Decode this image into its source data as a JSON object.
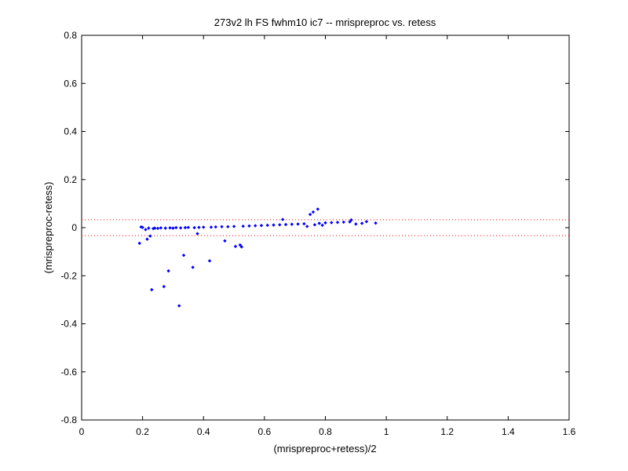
{
  "chart_data": {
    "type": "scatter",
    "title": "273v2 lh FS fwhm10 ic7 -- mrispreproc vs. retess",
    "xlabel": "(mrispreproc+retess)/2",
    "ylabel": "(mrispreproc-retess)",
    "xlim": [
      0,
      1.6
    ],
    "ylim": [
      -0.8,
      0.8
    ],
    "x_ticks": [
      "0",
      "0.2",
      "0.4",
      "0.6",
      "0.8",
      "1",
      "1.2",
      "1.4",
      "1.6"
    ],
    "y_ticks": [
      "0.8",
      "0.6",
      "0.4",
      "0.2",
      "0",
      "-0.2",
      "-0.4",
      "-0.6",
      "-0.8"
    ],
    "grid": false,
    "marker_color": "#0000ff",
    "reference_lines": {
      "color": "#ff0000",
      "style": "dotted",
      "y_values": [
        0.033,
        -0.033
      ]
    },
    "series": [
      {
        "points": [
          [
            0.19,
            -0.065
          ],
          [
            0.195,
            0.003
          ],
          [
            0.2,
            0.001
          ],
          [
            0.21,
            -0.008
          ],
          [
            0.215,
            -0.048
          ],
          [
            0.22,
            -0.002
          ],
          [
            0.225,
            -0.035
          ],
          [
            0.23,
            -0.258
          ],
          [
            0.235,
            -0.004
          ],
          [
            0.24,
            -0.002
          ],
          [
            0.25,
            -0.003
          ],
          [
            0.26,
            -0.001
          ],
          [
            0.27,
            -0.245
          ],
          [
            0.275,
            -0.002
          ],
          [
            0.285,
            -0.18
          ],
          [
            0.29,
            -0.001
          ],
          [
            0.3,
            -0.002
          ],
          [
            0.31,
            0.0
          ],
          [
            0.32,
            -0.325
          ],
          [
            0.325,
            -0.001
          ],
          [
            0.335,
            -0.115
          ],
          [
            0.34,
            0.0
          ],
          [
            0.35,
            0.001
          ],
          [
            0.365,
            -0.165
          ],
          [
            0.37,
            0.0
          ],
          [
            0.38,
            -0.025
          ],
          [
            0.385,
            0.001
          ],
          [
            0.4,
            0.002
          ],
          [
            0.42,
            -0.138
          ],
          [
            0.425,
            0.002
          ],
          [
            0.44,
            0.003
          ],
          [
            0.46,
            0.004
          ],
          [
            0.47,
            -0.055
          ],
          [
            0.48,
            0.004
          ],
          [
            0.5,
            0.005
          ],
          [
            0.505,
            -0.078
          ],
          [
            0.52,
            -0.072
          ],
          [
            0.525,
            -0.08
          ],
          [
            0.53,
            0.006
          ],
          [
            0.55,
            0.007
          ],
          [
            0.57,
            0.008
          ],
          [
            0.59,
            0.009
          ],
          [
            0.61,
            0.01
          ],
          [
            0.63,
            0.011
          ],
          [
            0.65,
            0.012
          ],
          [
            0.66,
            0.034
          ],
          [
            0.67,
            0.013
          ],
          [
            0.69,
            0.014
          ],
          [
            0.71,
            0.015
          ],
          [
            0.73,
            0.016
          ],
          [
            0.74,
            0.005
          ],
          [
            0.75,
            0.055
          ],
          [
            0.76,
            0.065
          ],
          [
            0.765,
            0.012
          ],
          [
            0.775,
            0.077
          ],
          [
            0.78,
            0.018
          ],
          [
            0.79,
            0.01
          ],
          [
            0.8,
            0.02
          ],
          [
            0.82,
            0.021
          ],
          [
            0.84,
            0.022
          ],
          [
            0.86,
            0.023
          ],
          [
            0.88,
            0.024
          ],
          [
            0.885,
            0.032
          ],
          [
            0.9,
            0.015
          ],
          [
            0.92,
            0.018
          ],
          [
            0.935,
            0.025
          ],
          [
            0.965,
            0.019
          ]
        ]
      }
    ]
  }
}
